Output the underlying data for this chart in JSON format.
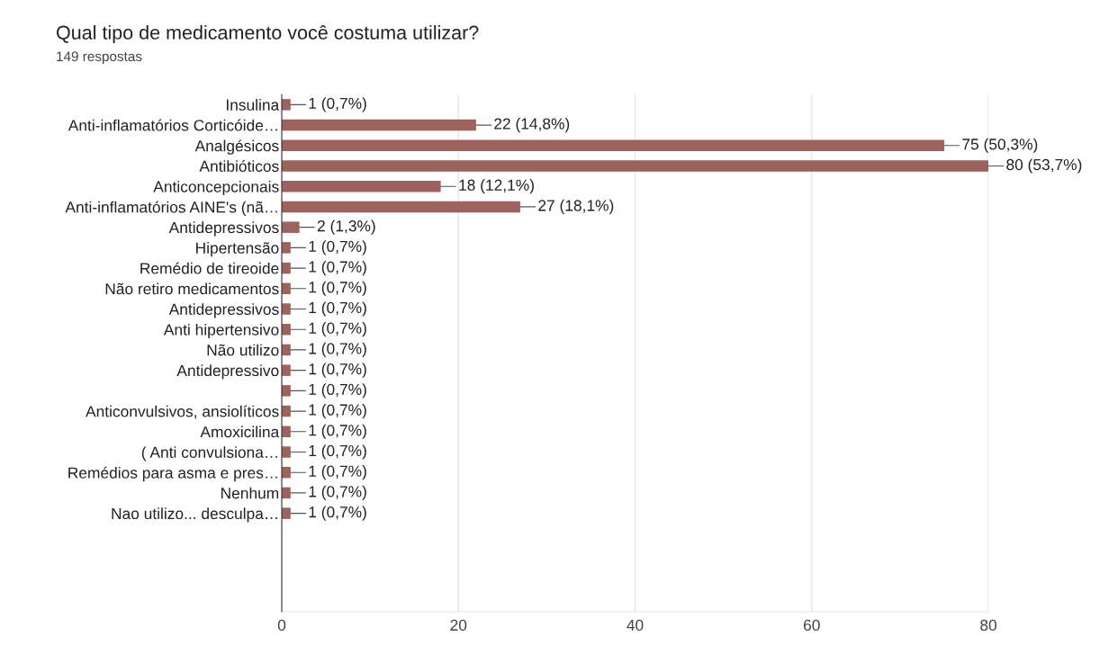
{
  "chart_data": {
    "type": "bar",
    "orientation": "horizontal",
    "title": "Qual tipo de medicamento você costuma utilizar?",
    "subtitle": "149 respostas",
    "categories": [
      "Insulina",
      "Anti-inflamatórios Corticóide…",
      "Analgésicos",
      "Antibióticos",
      "Anticoncepcionais",
      "Anti-inflamatórios AINE's (nã…",
      "Antidepressivos",
      "Hipertensão",
      "Remédio de tireoide",
      "Não retiro medicamentos",
      "Antidepressivos",
      "Anti hipertensivo",
      "Não utilizo",
      "Antidepressivo",
      null,
      "Anticonvulsivos, ansiolíticos",
      "Amoxicilina",
      "( Anti convulsiona…",
      "Remédios para asma e pres…",
      "Nenhum",
      "Nao utilizo... desculpa…"
    ],
    "values": [
      1,
      22,
      75,
      80,
      18,
      27,
      2,
      1,
      1,
      1,
      1,
      1,
      1,
      1,
      1,
      1,
      1,
      1,
      1,
      1,
      1
    ],
    "value_labels": [
      "1 (0,7%)",
      "22 (14,8%)",
      "75 (50,3%)",
      "80 (53,7%)",
      "18 (12,1%)",
      "27 (18,1%)",
      "2 (1,3%)",
      "1 (0,7%)",
      "1 (0,7%)",
      "1 (0,7%)",
      "1 (0,7%)",
      "1 (0,7%)",
      "1 (0,7%)",
      "1 (0,7%)",
      "1 (0,7%)",
      "1 (0,7%)",
      "1 (0,7%)",
      "1 (0,7%)",
      "1 (0,7%)",
      "1 (0,7%)",
      "1 (0,7%)"
    ],
    "color": "#9e625c",
    "xlim": [
      0,
      80
    ],
    "xticks": [
      0,
      20,
      40,
      60,
      80
    ],
    "grid": "x",
    "legend": false
  }
}
